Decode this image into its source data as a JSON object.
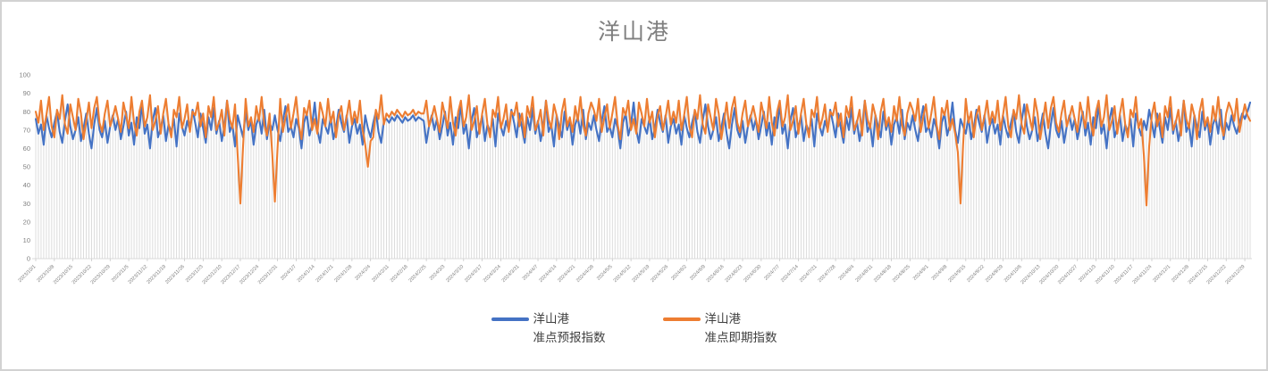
{
  "title": "洋山港",
  "legend": {
    "items": [
      {
        "line1": "洋山港",
        "line2": "准点预报指数"
      },
      {
        "line1": "洋山港",
        "line2": "准点即期指数"
      }
    ]
  },
  "colors": {
    "forecast_series": "#4472C4",
    "spot_series": "#ED7D31",
    "title_text": "#7F7F7F",
    "axis_text": "#808080",
    "drop_lines": "#D9D9D9",
    "axis_line": "#D9D9D9",
    "legend_text": "#404040",
    "frame_border": "#D2D2D2"
  },
  "chart_data": {
    "type": "line",
    "title": "洋山港",
    "xlabel": "",
    "ylabel": "",
    "ylim": [
      0,
      100
    ],
    "y_ticks": [
      0,
      10,
      20,
      30,
      40,
      50,
      60,
      70,
      80,
      90,
      100
    ],
    "grid": false,
    "drop_lines": true,
    "legend_position": "bottom",
    "x_frequency": "daily",
    "x_label_every_n_points": 7,
    "x_tick_labels": [
      "2023/10/1",
      "2023/10/8",
      "2023/10/15",
      "2023/10/22",
      "2023/10/29",
      "2023/11/5",
      "2023/11/12",
      "2023/11/19",
      "2023/11/26",
      "2023/12/3",
      "2023/12/10",
      "2023/12/17",
      "2023/12/24",
      "2023/12/31",
      "2024/1/7",
      "2024/1/14",
      "2024/1/21",
      "2024/1/28",
      "2024/2/4",
      "2024/2/11",
      "2024/2/18",
      "2024/2/25",
      "2024/3/3",
      "2024/3/10",
      "2024/3/17",
      "2024/3/24",
      "2024/3/31",
      "2024/4/7",
      "2024/4/14",
      "2024/4/21",
      "2024/4/28",
      "2024/5/5",
      "2024/5/12",
      "2024/5/19",
      "2024/5/26",
      "2024/6/2",
      "2024/6/9",
      "2024/6/16",
      "2024/6/23",
      "2024/6/30",
      "2024/7/7",
      "2024/7/14",
      "2024/7/21",
      "2024/7/28",
      "2024/8/4",
      "2024/8/11",
      "2024/8/18",
      "2024/8/25",
      "2024/9/1",
      "2024/9/8",
      "2024/9/15",
      "2024/9/22",
      "2024/9/29",
      "2024/10/6",
      "2024/10/13",
      "2024/10/20",
      "2024/10/27",
      "2024/11/3",
      "2024/11/10",
      "2024/11/17",
      "2024/11/24",
      "2024/12/1",
      "2024/12/8",
      "2024/12/15",
      "2024/12/22",
      "2024/12/29"
    ],
    "series": [
      {
        "name": "洋山港 准点预报指数",
        "color": "#4472C4",
        "values": [
          76,
          68,
          73,
          62,
          78,
          71,
          66,
          74,
          80,
          69,
          63,
          75,
          84,
          72,
          65,
          70,
          77,
          64,
          71,
          79,
          68,
          60,
          73,
          82,
          70,
          66,
          75,
          63,
          72,
          78,
          70,
          76,
          65,
          72,
          80,
          67,
          74,
          62,
          77,
          71,
          84,
          68,
          73,
          60,
          75,
          82,
          66,
          71,
          78,
          64,
          73,
          69,
          76,
          61,
          79,
          72,
          67,
          75,
          70,
          81,
          74,
          66,
          79,
          71,
          63,
          77,
          70,
          82,
          68,
          75,
          64,
          72,
          86,
          69,
          73,
          61,
          78,
          72,
          66,
          80,
          70,
          75,
          62,
          73,
          77,
          68,
          81,
          65,
          74,
          70,
          78,
          70,
          64,
          75,
          83,
          69,
          72,
          66,
          76,
          71,
          60,
          74,
          79,
          67,
          73,
          85,
          70,
          63,
          76,
          72,
          68,
          77,
          65,
          71,
          81,
          74,
          69,
          78,
          63,
          72,
          76,
          68,
          73,
          62,
          78,
          71,
          66,
          74,
          80,
          69,
          63,
          75,
          76,
          74,
          77,
          75,
          78,
          76,
          74,
          77,
          75,
          76,
          78,
          75,
          77,
          76,
          75,
          63,
          72,
          78,
          70,
          76,
          65,
          72,
          80,
          67,
          74,
          62,
          77,
          71,
          84,
          68,
          73,
          60,
          75,
          82,
          66,
          71,
          78,
          64,
          73,
          69,
          76,
          61,
          79,
          72,
          67,
          75,
          70,
          81,
          74,
          66,
          79,
          71,
          63,
          77,
          70,
          82,
          68,
          75,
          64,
          72,
          86,
          69,
          73,
          61,
          78,
          72,
          66,
          80,
          70,
          75,
          62,
          73,
          77,
          68,
          81,
          65,
          74,
          70,
          78,
          70,
          64,
          75,
          83,
          69,
          72,
          66,
          76,
          71,
          60,
          74,
          79,
          67,
          73,
          85,
          70,
          63,
          76,
          72,
          68,
          77,
          65,
          71,
          81,
          74,
          69,
          78,
          63,
          72,
          76,
          68,
          73,
          62,
          78,
          71,
          66,
          74,
          80,
          69,
          63,
          75,
          84,
          72,
          65,
          70,
          77,
          64,
          71,
          79,
          68,
          60,
          73,
          82,
          70,
          66,
          75,
          63,
          72,
          78,
          70,
          76,
          65,
          72,
          80,
          67,
          74,
          62,
          77,
          71,
          84,
          68,
          73,
          60,
          75,
          82,
          66,
          71,
          78,
          64,
          73,
          69,
          76,
          61,
          79,
          72,
          67,
          75,
          70,
          81,
          74,
          66,
          79,
          71,
          63,
          77,
          70,
          82,
          68,
          75,
          64,
          72,
          86,
          69,
          73,
          61,
          78,
          72,
          66,
          80,
          70,
          75,
          62,
          73,
          77,
          68,
          81,
          65,
          74,
          70,
          78,
          70,
          64,
          75,
          83,
          69,
          72,
          66,
          76,
          71,
          60,
          74,
          79,
          67,
          73,
          85,
          70,
          63,
          76,
          72,
          68,
          77,
          65,
          71,
          81,
          74,
          69,
          78,
          63,
          72,
          76,
          68,
          73,
          62,
          78,
          71,
          66,
          74,
          80,
          69,
          63,
          75,
          84,
          72,
          65,
          70,
          77,
          64,
          71,
          79,
          68,
          60,
          73,
          82,
          70,
          66,
          75,
          63,
          72,
          78,
          70,
          76,
          65,
          72,
          80,
          67,
          74,
          62,
          77,
          71,
          84,
          68,
          73,
          60,
          75,
          82,
          66,
          71,
          78,
          64,
          73,
          69,
          76,
          61,
          79,
          72,
          67,
          75,
          70,
          81,
          74,
          66,
          79,
          71,
          63,
          77,
          70,
          82,
          68,
          75,
          64,
          72,
          86,
          69,
          73,
          61,
          78,
          72,
          66,
          80,
          70,
          75,
          62,
          73,
          77,
          68,
          81,
          65,
          74,
          70,
          78,
          72,
          68,
          74,
          79,
          76,
          80,
          85
        ]
      },
      {
        "name": "洋山港 准点即期指数",
        "color": "#ED7D31",
        "values": [
          80,
          74,
          86,
          70,
          78,
          88,
          72,
          66,
          81,
          76,
          89,
          73,
          68,
          84,
          77,
          70,
          87,
          79,
          65,
          75,
          85,
          71,
          82,
          88,
          74,
          69,
          79,
          86,
          72,
          77,
          83,
          76,
          69,
          85,
          78,
          71,
          88,
          74,
          67,
          80,
          86,
          72,
          77,
          89,
          70,
          75,
          83,
          68,
          79,
          87,
          73,
          66,
          81,
          77,
          88,
          71,
          76,
          84,
          69,
          80,
          78,
          85,
          72,
          79,
          66,
          83,
          77,
          88,
          70,
          74,
          81,
          67,
          86,
          76,
          71,
          84,
          56,
          30,
          61,
          87,
          72,
          77,
          69,
          83,
          75,
          88,
          73,
          67,
          79,
          57,
          31,
          60,
          87,
          69,
          77,
          84,
          71,
          79,
          88,
          73,
          65,
          82,
          78,
          86,
          70,
          76,
          68,
          85,
          79,
          72,
          87,
          74,
          80,
          66,
          78,
          83,
          70,
          77,
          86,
          73,
          80,
          74,
          86,
          70,
          62,
          50,
          64,
          66,
          81,
          76,
          89,
          73,
          79,
          77,
          80,
          78,
          81,
          79,
          77,
          80,
          78,
          79,
          81,
          78,
          80,
          79,
          79,
          86,
          72,
          77,
          83,
          76,
          69,
          85,
          78,
          71,
          88,
          74,
          67,
          80,
          86,
          72,
          77,
          89,
          70,
          75,
          83,
          68,
          79,
          87,
          73,
          66,
          81,
          77,
          88,
          71,
          76,
          84,
          69,
          80,
          78,
          85,
          72,
          79,
          66,
          83,
          77,
          88,
          70,
          74,
          81,
          67,
          86,
          76,
          71,
          84,
          78,
          65,
          80,
          87,
          72,
          77,
          69,
          83,
          75,
          88,
          73,
          67,
          79,
          85,
          81,
          75,
          87,
          69,
          77,
          84,
          71,
          79,
          88,
          73,
          65,
          82,
          78,
          86,
          70,
          76,
          68,
          85,
          79,
          72,
          87,
          74,
          80,
          66,
          78,
          83,
          70,
          77,
          86,
          73,
          80,
          74,
          86,
          70,
          78,
          88,
          72,
          66,
          81,
          76,
          89,
          73,
          68,
          84,
          77,
          70,
          87,
          79,
          65,
          75,
          85,
          71,
          82,
          88,
          74,
          69,
          79,
          86,
          72,
          77,
          83,
          76,
          69,
          85,
          78,
          71,
          88,
          74,
          67,
          80,
          86,
          72,
          77,
          89,
          70,
          75,
          83,
          68,
          79,
          87,
          73,
          66,
          81,
          77,
          88,
          71,
          76,
          84,
          69,
          80,
          78,
          85,
          72,
          79,
          66,
          83,
          77,
          88,
          70,
          74,
          81,
          67,
          86,
          76,
          71,
          84,
          78,
          65,
          80,
          87,
          72,
          77,
          69,
          83,
          75,
          88,
          73,
          67,
          79,
          85,
          81,
          75,
          87,
          69,
          77,
          84,
          71,
          79,
          88,
          73,
          65,
          82,
          78,
          86,
          70,
          76,
          68,
          58,
          30,
          62,
          87,
          74,
          80,
          66,
          78,
          83,
          70,
          77,
          86,
          73,
          80,
          74,
          86,
          70,
          78,
          88,
          72,
          66,
          81,
          76,
          89,
          73,
          68,
          84,
          77,
          70,
          87,
          79,
          65,
          75,
          85,
          71,
          82,
          88,
          74,
          69,
          79,
          86,
          72,
          77,
          83,
          76,
          69,
          85,
          78,
          71,
          88,
          74,
          67,
          80,
          86,
          72,
          77,
          89,
          70,
          75,
          83,
          68,
          79,
          87,
          73,
          66,
          81,
          77,
          88,
          71,
          76,
          56,
          29,
          61,
          78,
          85,
          72,
          79,
          66,
          83,
          77,
          88,
          70,
          74,
          81,
          67,
          86,
          76,
          71,
          84,
          78,
          65,
          80,
          87,
          72,
          77,
          69,
          83,
          75,
          88,
          73,
          67,
          79,
          85,
          81,
          75,
          87,
          69,
          77,
          84,
          78,
          75
        ]
      }
    ]
  }
}
